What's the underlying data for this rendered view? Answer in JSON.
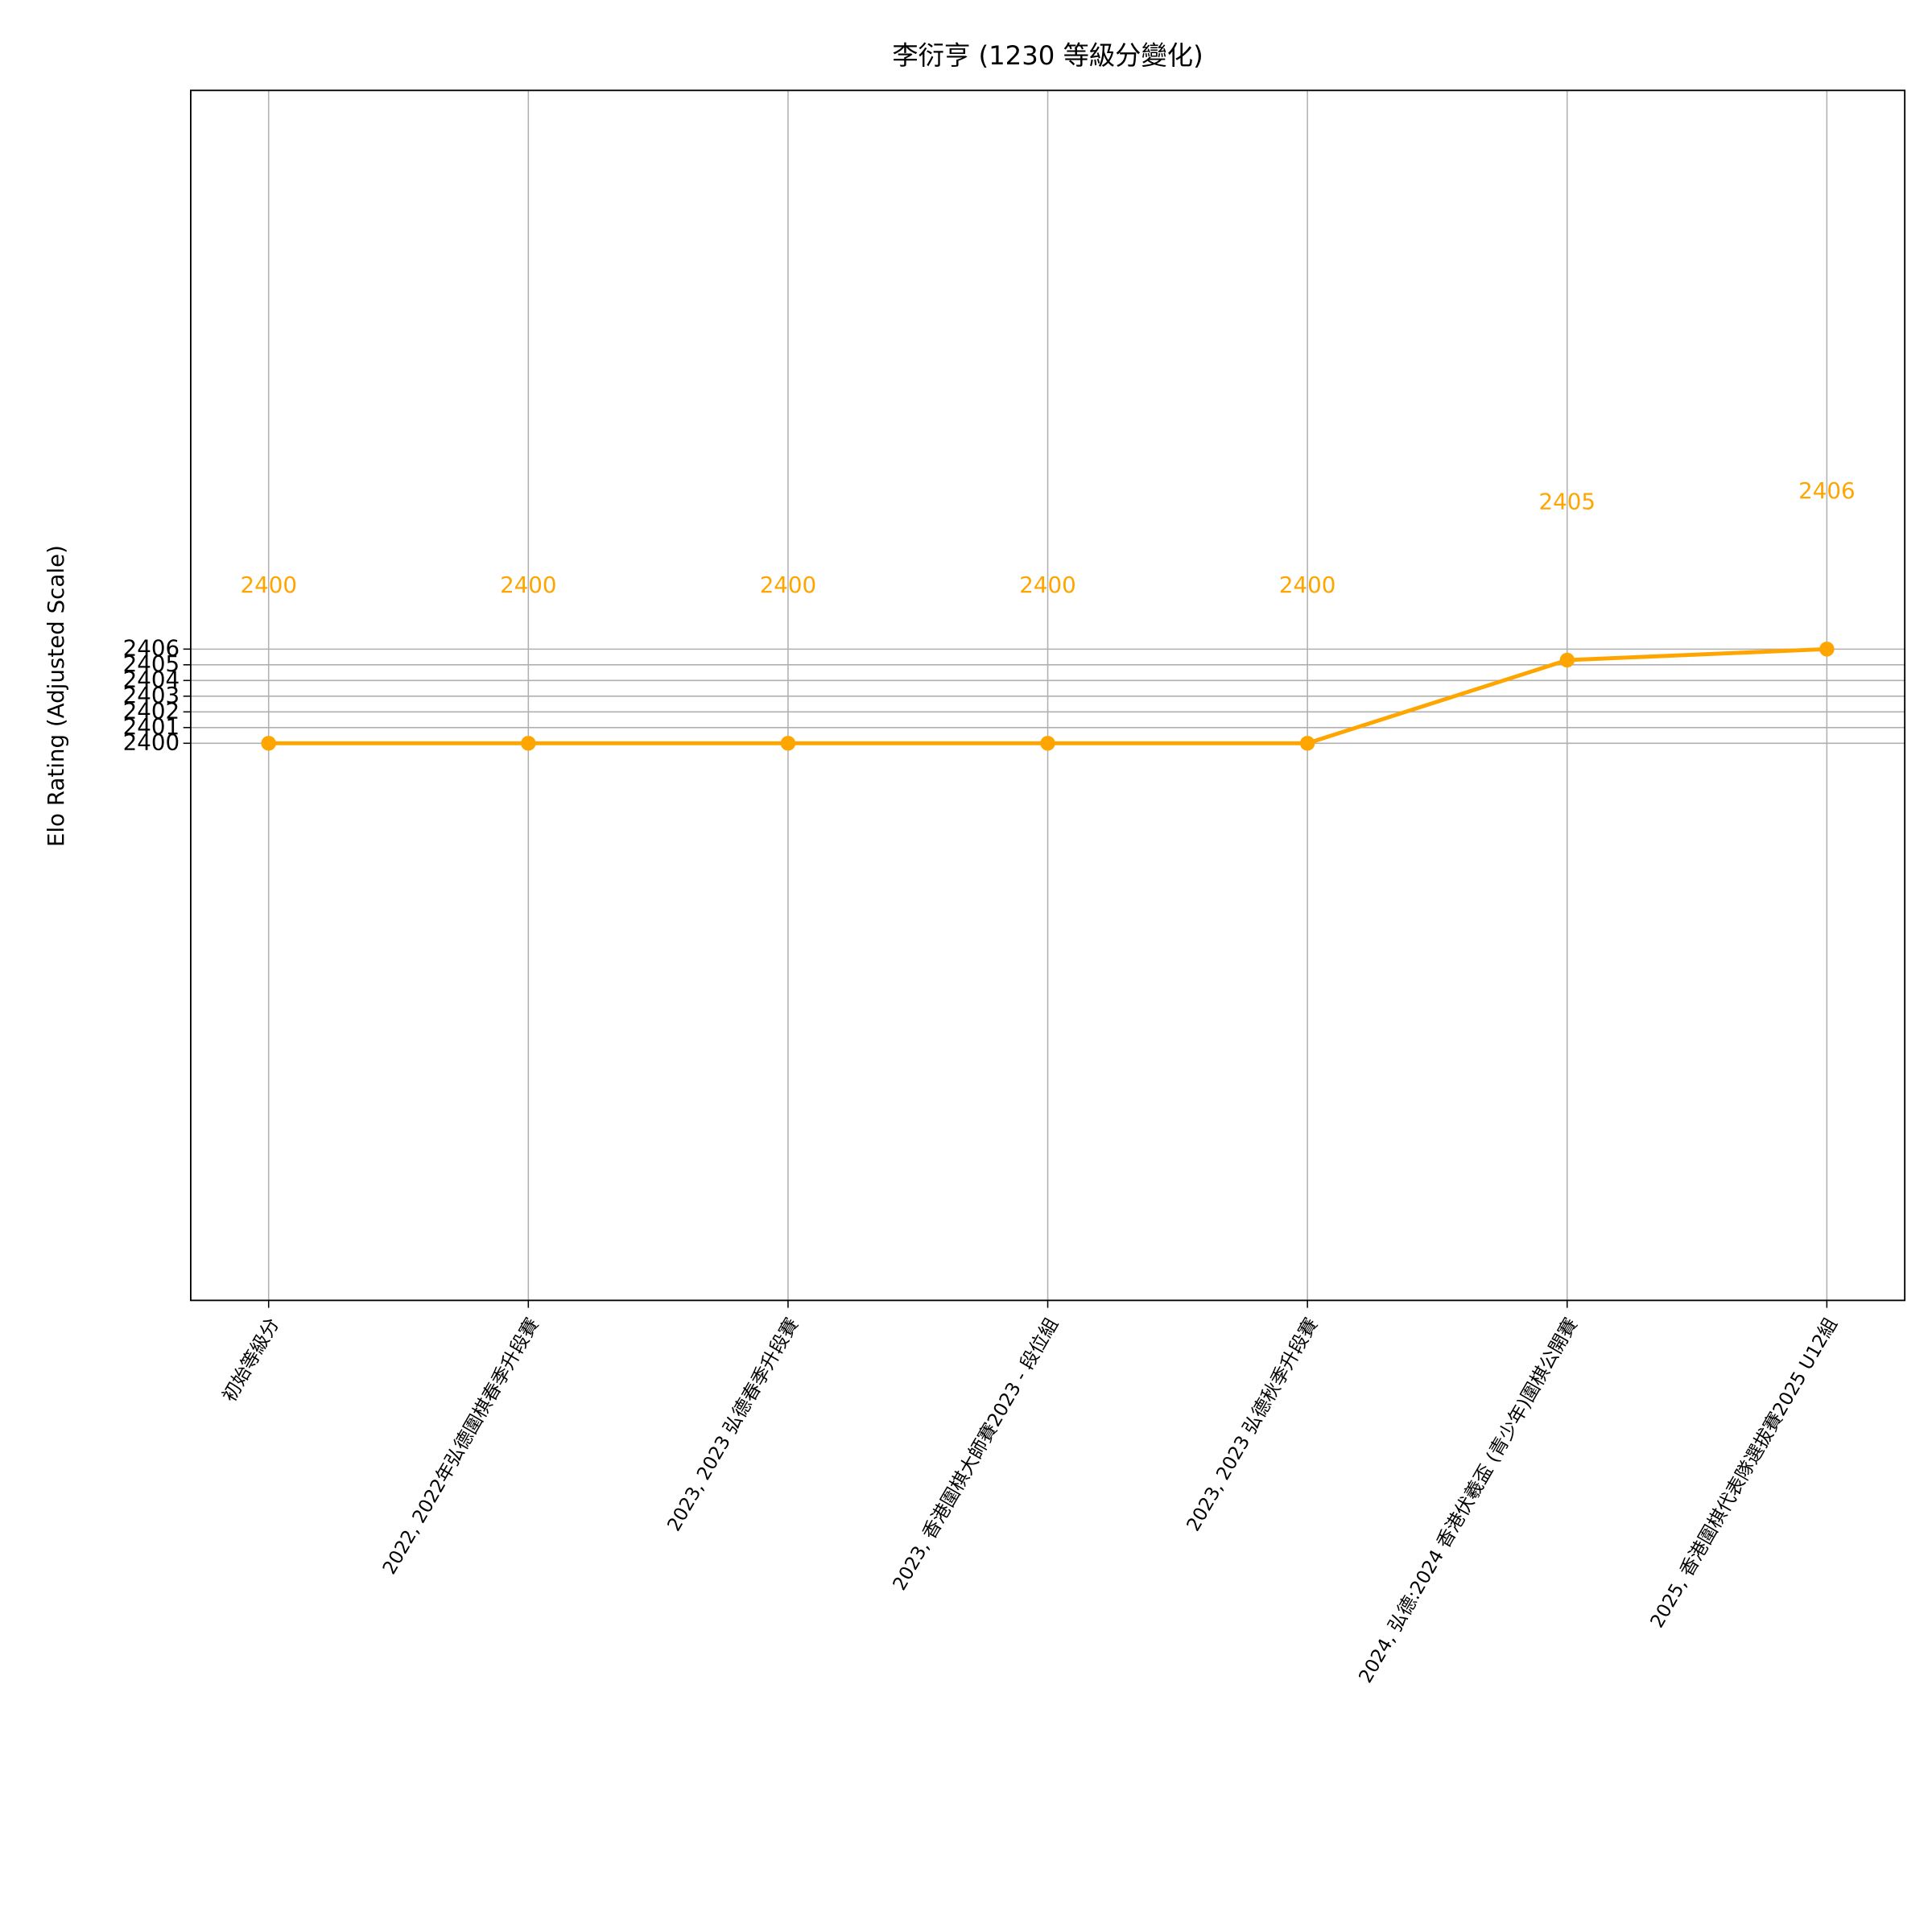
{
  "chart_data": {
    "type": "line",
    "title": "李衍亨 (1230 等級分變化)",
    "y_label": "Elo Rating (Adjusted Scale)",
    "categories": [
      "初始等級分",
      "2022, 2022年弘德圍棋春季升段賽",
      "2023, 2023 弘德春季升段賽",
      "2023, 香港圍棋大師賽2023 - 段位組",
      "2023, 2023 弘德秋季升段賽",
      "2024, 弘德:2024 香港伏羲盃 (青少年)圍棋公開賽",
      "2025, 香港圍棋代表隊選拔賽2025 U12組"
    ],
    "series": [
      {
        "name": "Elo Rating",
        "color": "#ffa500",
        "values": [
          2400,
          2400,
          2400,
          2400,
          2400,
          2405.3,
          2406
        ],
        "value_labels": [
          "2400",
          "2400",
          "2400",
          "2400",
          "2400",
          "2405",
          "2406"
        ]
      }
    ],
    "ylim": [
      2364.5,
      2441.6
    ],
    "yticks": [
      2400,
      2401,
      2402,
      2403,
      2404,
      2405,
      2406
    ],
    "grid": true
  }
}
